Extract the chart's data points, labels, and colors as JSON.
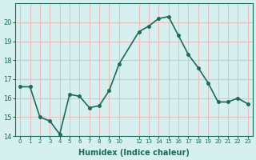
{
  "x": [
    0,
    1,
    2,
    3,
    4,
    5,
    6,
    7,
    8,
    9,
    10,
    12,
    13,
    14,
    15,
    16,
    17,
    18,
    19,
    20,
    21,
    22,
    23
  ],
  "y": [
    16.6,
    16.6,
    15.0,
    14.8,
    14.1,
    16.2,
    16.1,
    15.5,
    15.6,
    16.4,
    17.8,
    19.5,
    19.8,
    20.2,
    20.3,
    19.3,
    18.3,
    17.6,
    16.8,
    15.8,
    15.8,
    16.0,
    15.7
  ],
  "line_color": "#1a6b5a",
  "marker_color": "#1a6b5a",
  "bg_color": "#d6f0ef",
  "grid_color": "#e8c0c0",
  "axis_label_color": "#1a6b5a",
  "tick_color": "#1a6b5a",
  "xlabel": "Humidex (Indice chaleur)",
  "ylim": [
    14,
    21
  ],
  "xlim": [
    -0.5,
    23.5
  ],
  "yticks": [
    14,
    15,
    16,
    17,
    18,
    19,
    20
  ],
  "xtick_positions": [
    0,
    1,
    2,
    3,
    4,
    5,
    6,
    7,
    8,
    9,
    10,
    12,
    13,
    14,
    15,
    16,
    17,
    18,
    19,
    20,
    21,
    22,
    23
  ],
  "xtick_labels": [
    "0",
    "1",
    "2",
    "3",
    "4",
    "5",
    "6",
    "7",
    "8",
    "9",
    "10",
    "12",
    "13",
    "14",
    "15",
    "16",
    "17",
    "18",
    "19",
    "20",
    "21",
    "22",
    "23"
  ],
  "marker_size": 2.5,
  "line_width": 1.2
}
